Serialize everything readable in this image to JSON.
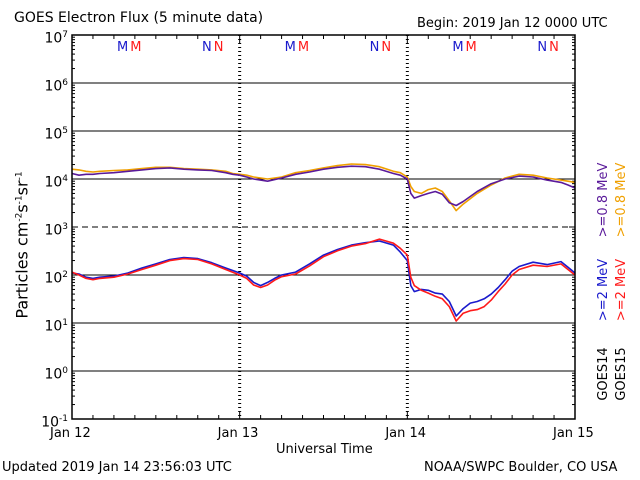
{
  "title": "GOES Electron Flux (5 minute data)",
  "begin": "Begin: 2019 Jan 12 0000 UTC",
  "updated": "Updated 2019 Jan 14 23:56:03 UTC",
  "credit": "NOAA/SWPC Boulder, CO USA",
  "colors": {
    "goes14_high": "#1a1acc",
    "goes15_high": "#ff1a1a",
    "goes14_low": "#5a1a9a",
    "goes15_low": "#f0a000",
    "axis": "#000000"
  },
  "chart_data": {
    "type": "line",
    "xlabel": "Universal Time",
    "ylabel": "Particles cm-2s-1sr-1",
    "ylabel_parts": {
      "main": "Particles cm",
      "e1": "-2",
      "s": "s",
      "e2": "-1",
      "sr": "sr",
      "e3": "-1"
    },
    "yscale": "log",
    "ylim": [
      0.1,
      10000000
    ],
    "y_ticks": [
      {
        "base": "10",
        "exp": "7"
      },
      {
        "base": "10",
        "exp": "6"
      },
      {
        "base": "10",
        "exp": "5"
      },
      {
        "base": "10",
        "exp": "4"
      },
      {
        "base": "10",
        "exp": "3"
      },
      {
        "base": "10",
        "exp": "2"
      },
      {
        "base": "10",
        "exp": "1"
      },
      {
        "base": "10",
        "exp": "0"
      },
      {
        "base": "10",
        "exp": "-1"
      }
    ],
    "x_unit": "hours since 2019 Jan 12 0000 UTC",
    "xlim": [
      0,
      72
    ],
    "x_ticks": [
      "Jan 12",
      "Jan 13",
      "Jan 14",
      "Jan 15"
    ],
    "day_markers": [
      {
        "m": [
          "M",
          "M"
        ],
        "n": [
          "N",
          "N"
        ]
      },
      {
        "m": [
          "M",
          "M"
        ],
        "n": [
          "N",
          "N"
        ]
      },
      {
        "m": [
          "M",
          "M"
        ],
        "n": [
          "N",
          "N"
        ]
      }
    ],
    "right_labels": {
      "low_energy": ">=0.8  MeV",
      "high_energy": ">=2  MeV",
      "goes14": "GOES14",
      "goes15": "GOES15"
    },
    "series": [
      {
        "name": "GOES14 >=0.8 MeV",
        "x": [
          0,
          1,
          2,
          3,
          4,
          6,
          8,
          10,
          12,
          14,
          16,
          18,
          20,
          22,
          23,
          24,
          25,
          26,
          27,
          28,
          30,
          32,
          34,
          36,
          38,
          40,
          42,
          44,
          46,
          47,
          48,
          48.5,
          49,
          50,
          51,
          52,
          53,
          54,
          55,
          56,
          58,
          60,
          62,
          64,
          66,
          68,
          70,
          71,
          72
        ],
        "y": [
          13000,
          12000,
          12500,
          12500,
          13000,
          13500,
          14500,
          15500,
          16500,
          17000,
          16000,
          15500,
          15000,
          13500,
          12500,
          12000,
          11000,
          10000,
          9500,
          9000,
          10500,
          12500,
          14000,
          16000,
          17500,
          18500,
          18000,
          16000,
          13000,
          12000,
          10000,
          5000,
          4000,
          4500,
          5000,
          5500,
          4800,
          3200,
          2800,
          3400,
          5500,
          8000,
          10000,
          11500,
          11000,
          9500,
          8500,
          7500,
          6500
        ]
      },
      {
        "name": "GOES15 >=0.8 MeV",
        "x": [
          0,
          1,
          2,
          3,
          4,
          6,
          8,
          10,
          12,
          14,
          16,
          18,
          20,
          22,
          23,
          24,
          25,
          26,
          27,
          28,
          30,
          32,
          34,
          36,
          38,
          40,
          42,
          44,
          46,
          47,
          48,
          48.5,
          49,
          50,
          51,
          52,
          53,
          54,
          55,
          56,
          58,
          60,
          62,
          64,
          66,
          68,
          70,
          71,
          72
        ],
        "y": [
          16000,
          15500,
          14500,
          14000,
          14500,
          15000,
          15500,
          16500,
          17500,
          17500,
          16500,
          16000,
          15500,
          14500,
          13000,
          12500,
          12000,
          11000,
          10500,
          10000,
          11000,
          13500,
          15000,
          17000,
          19000,
          20500,
          20000,
          18000,
          14500,
          13500,
          11000,
          7000,
          5500,
          5000,
          6000,
          6500,
          5500,
          3500,
          2200,
          3000,
          5000,
          7500,
          10500,
          12500,
          12000,
          10500,
          9500,
          9000,
          8500
        ]
      },
      {
        "name": "GOES14 >=2 MeV",
        "x": [
          0,
          1,
          2,
          3,
          4,
          6,
          8,
          10,
          12,
          14,
          16,
          18,
          20,
          22,
          24,
          25,
          26,
          27,
          28,
          29,
          30,
          32,
          34,
          36,
          38,
          40,
          42,
          44,
          46,
          47,
          48,
          48.5,
          49,
          50,
          51,
          52,
          53,
          54,
          55,
          56,
          57,
          58,
          59,
          60,
          61,
          62,
          63,
          64,
          66,
          68,
          70,
          71,
          72
        ],
        "y": [
          110,
          105,
          90,
          85,
          90,
          95,
          110,
          140,
          170,
          210,
          230,
          220,
          180,
          140,
          110,
          95,
          70,
          60,
          70,
          85,
          100,
          115,
          170,
          260,
          340,
          420,
          470,
          510,
          420,
          300,
          200,
          60,
          45,
          50,
          48,
          42,
          40,
          28,
          14,
          20,
          26,
          28,
          32,
          40,
          55,
          80,
          120,
          150,
          185,
          165,
          190,
          145,
          110
        ]
      },
      {
        "name": "GOES15 >=2 MeV",
        "x": [
          0,
          1,
          2,
          3,
          4,
          6,
          8,
          10,
          12,
          14,
          16,
          18,
          20,
          22,
          24,
          25,
          26,
          27,
          28,
          29,
          30,
          32,
          34,
          36,
          38,
          40,
          42,
          44,
          46,
          47,
          48,
          48.5,
          49,
          50,
          51,
          52,
          53,
          54,
          55,
          56,
          57,
          58,
          59,
          60,
          61,
          62,
          63,
          64,
          66,
          68,
          70,
          71,
          72
        ],
        "y": [
          115,
          100,
          85,
          80,
          85,
          90,
          105,
          130,
          160,
          200,
          220,
          210,
          170,
          130,
          100,
          85,
          62,
          55,
          62,
          78,
          92,
          105,
          155,
          240,
          320,
          400,
          450,
          560,
          460,
          360,
          260,
          90,
          60,
          48,
          42,
          36,
          32,
          22,
          11,
          16,
          18,
          19,
          22,
          30,
          45,
          65,
          100,
          130,
          160,
          150,
          170,
          130,
          100
        ]
      }
    ]
  }
}
